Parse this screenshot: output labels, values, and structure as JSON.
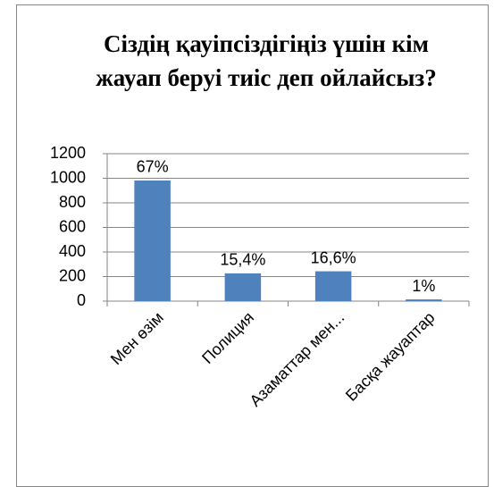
{
  "chart_data": {
    "type": "bar",
    "title": "Сіздің қауіпсіздігіңіз үшін кім жауап беруі тиіс деп ойлайсыз?",
    "categories": [
      "Мен өзім",
      "Полиция",
      "Азаматтар мен...",
      "Басқа жауаптар"
    ],
    "values": [
      982,
      226,
      243,
      14
    ],
    "value_labels": [
      "67%",
      "15,4%",
      "16,6%",
      "1%"
    ],
    "color": "#4f81bd",
    "ylim": [
      0,
      1200
    ],
    "yticks": [
      0,
      200,
      400,
      600,
      800,
      1000,
      1200
    ],
    "grid": true
  }
}
